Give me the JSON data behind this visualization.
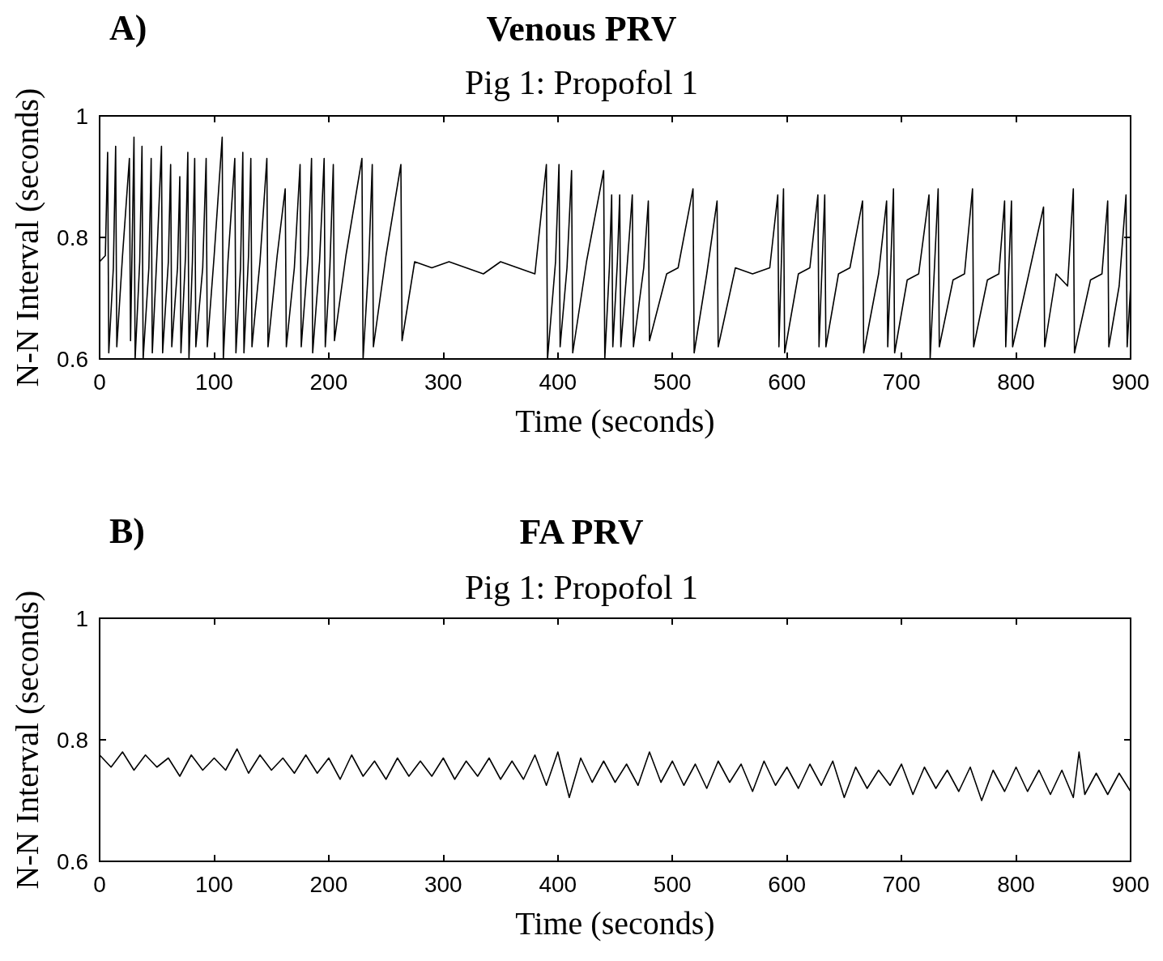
{
  "chart_data": [
    {
      "type": "line",
      "title": "Venous PRV",
      "subtitle": "Pig 1: Propofol 1",
      "xlabel": "Time (seconds)",
      "ylabel": "N-N Interval (seconds)",
      "annotations": [
        "A)"
      ],
      "xlim": [
        0,
        900
      ],
      "xticks": [
        0,
        100,
        200,
        300,
        400,
        500,
        600,
        700,
        800,
        900
      ],
      "ylim": [
        0.6,
        1
      ],
      "yticks": [
        0.6,
        0.8,
        1
      ],
      "grid": false,
      "series": [
        {
          "color": "#000000",
          "x": [
            0,
            5,
            7,
            8,
            12,
            14,
            15,
            20,
            26,
            27,
            30,
            31,
            35,
            37,
            38,
            43,
            45,
            46,
            50,
            54,
            55,
            60,
            62,
            63,
            68,
            70,
            71,
            75,
            77,
            78,
            81,
            83,
            84,
            90,
            93,
            94,
            100,
            107,
            108,
            112,
            118,
            119,
            123,
            125,
            126,
            130,
            132,
            133,
            140,
            146,
            147,
            155,
            162,
            163,
            170,
            175,
            176,
            182,
            185,
            186,
            192,
            196,
            197,
            201,
            204,
            205,
            215,
            229,
            230,
            235,
            238,
            239,
            250,
            263,
            264,
            275,
            290,
            305,
            320,
            335,
            350,
            365,
            380,
            390,
            391,
            398,
            401,
            402,
            408,
            412,
            413,
            425,
            440,
            441,
            445,
            447,
            448,
            452,
            454,
            455,
            460,
            465,
            466,
            475,
            479,
            480,
            495,
            505,
            518,
            519,
            530,
            539,
            540,
            555,
            570,
            585,
            592,
            593,
            597,
            598,
            610,
            620,
            627,
            628,
            633,
            634,
            645,
            655,
            666,
            667,
            680,
            687,
            688,
            693,
            694,
            705,
            715,
            724,
            725,
            732,
            733,
            745,
            755,
            762,
            763,
            775,
            785,
            790,
            791,
            796,
            797,
            810,
            824,
            825,
            835,
            845,
            850,
            851,
            865,
            875,
            880,
            881,
            890,
            896,
            897,
            900
          ],
          "values": [
            0.76,
            0.77,
            0.94,
            0.61,
            0.75,
            0.95,
            0.62,
            0.77,
            0.93,
            0.63,
            0.965,
            0.6,
            0.76,
            0.95,
            0.6,
            0.75,
            0.93,
            0.61,
            0.77,
            0.95,
            0.61,
            0.76,
            0.92,
            0.62,
            0.75,
            0.9,
            0.61,
            0.77,
            0.94,
            0.6,
            0.76,
            0.93,
            0.62,
            0.75,
            0.93,
            0.62,
            0.77,
            0.965,
            0.6,
            0.76,
            0.93,
            0.61,
            0.75,
            0.94,
            0.61,
            0.77,
            0.93,
            0.62,
            0.76,
            0.93,
            0.62,
            0.77,
            0.88,
            0.62,
            0.75,
            0.92,
            0.62,
            0.77,
            0.93,
            0.61,
            0.76,
            0.93,
            0.62,
            0.75,
            0.92,
            0.63,
            0.77,
            0.93,
            0.6,
            0.76,
            0.92,
            0.62,
            0.77,
            0.92,
            0.63,
            0.76,
            0.75,
            0.76,
            0.75,
            0.74,
            0.76,
            0.75,
            0.74,
            0.92,
            0.6,
            0.76,
            0.92,
            0.62,
            0.75,
            0.91,
            0.61,
            0.76,
            0.91,
            0.6,
            0.75,
            0.87,
            0.62,
            0.76,
            0.87,
            0.62,
            0.74,
            0.87,
            0.62,
            0.75,
            0.86,
            0.63,
            0.74,
            0.75,
            0.88,
            0.61,
            0.74,
            0.86,
            0.62,
            0.75,
            0.74,
            0.75,
            0.87,
            0.62,
            0.88,
            0.61,
            0.74,
            0.75,
            0.87,
            0.62,
            0.87,
            0.62,
            0.74,
            0.75,
            0.86,
            0.61,
            0.74,
            0.86,
            0.62,
            0.88,
            0.61,
            0.73,
            0.74,
            0.87,
            0.6,
            0.88,
            0.62,
            0.73,
            0.74,
            0.88,
            0.62,
            0.73,
            0.74,
            0.86,
            0.62,
            0.86,
            0.62,
            0.73,
            0.85,
            0.62,
            0.74,
            0.72,
            0.88,
            0.61,
            0.73,
            0.74,
            0.86,
            0.62,
            0.72,
            0.87,
            0.62,
            0.72
          ]
        }
      ]
    },
    {
      "type": "line",
      "title": "FA PRV",
      "subtitle": "Pig 1: Propofol 1",
      "xlabel": "Time (seconds)",
      "ylabel": "N-N Interval (seconds)",
      "annotations": [
        "B)"
      ],
      "xlim": [
        0,
        900
      ],
      "xticks": [
        0,
        100,
        200,
        300,
        400,
        500,
        600,
        700,
        800,
        900
      ],
      "ylim": [
        0.6,
        1
      ],
      "yticks": [
        0.6,
        0.8,
        1
      ],
      "grid": false,
      "series": [
        {
          "color": "#000000",
          "x": [
            0,
            10,
            20,
            30,
            40,
            50,
            60,
            70,
            80,
            90,
            100,
            110,
            120,
            130,
            140,
            150,
            160,
            170,
            180,
            190,
            200,
            210,
            220,
            230,
            240,
            250,
            260,
            270,
            280,
            290,
            300,
            310,
            320,
            330,
            340,
            350,
            360,
            370,
            380,
            390,
            400,
            410,
            420,
            430,
            440,
            450,
            460,
            470,
            480,
            490,
            500,
            510,
            520,
            530,
            540,
            550,
            560,
            570,
            580,
            590,
            600,
            610,
            620,
            630,
            640,
            650,
            660,
            670,
            680,
            690,
            700,
            710,
            720,
            730,
            740,
            750,
            760,
            770,
            780,
            790,
            800,
            810,
            820,
            830,
            840,
            850,
            855,
            860,
            870,
            880,
            890,
            900
          ],
          "values": [
            0.775,
            0.755,
            0.78,
            0.75,
            0.775,
            0.755,
            0.77,
            0.74,
            0.775,
            0.75,
            0.77,
            0.75,
            0.785,
            0.745,
            0.775,
            0.75,
            0.77,
            0.745,
            0.775,
            0.745,
            0.77,
            0.735,
            0.775,
            0.74,
            0.765,
            0.735,
            0.77,
            0.74,
            0.765,
            0.74,
            0.77,
            0.735,
            0.765,
            0.74,
            0.77,
            0.735,
            0.765,
            0.735,
            0.775,
            0.725,
            0.78,
            0.705,
            0.77,
            0.73,
            0.765,
            0.73,
            0.76,
            0.725,
            0.78,
            0.73,
            0.765,
            0.725,
            0.76,
            0.72,
            0.765,
            0.73,
            0.76,
            0.715,
            0.765,
            0.725,
            0.755,
            0.72,
            0.76,
            0.725,
            0.765,
            0.705,
            0.755,
            0.72,
            0.75,
            0.725,
            0.76,
            0.71,
            0.755,
            0.72,
            0.75,
            0.715,
            0.755,
            0.7,
            0.75,
            0.715,
            0.755,
            0.715,
            0.75,
            0.71,
            0.75,
            0.705,
            0.78,
            0.71,
            0.745,
            0.71,
            0.745,
            0.715
          ]
        }
      ]
    }
  ]
}
